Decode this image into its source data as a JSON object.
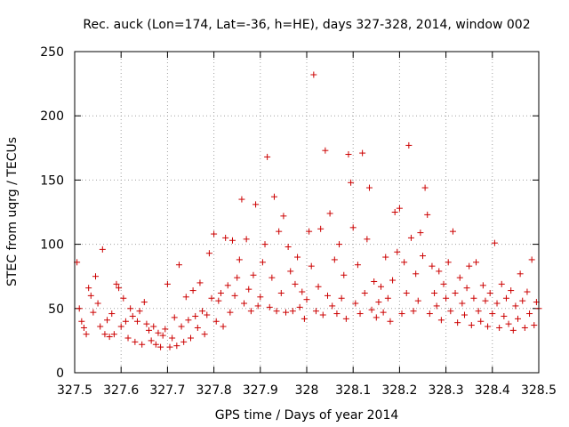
{
  "chart_data": {
    "type": "scatter",
    "title": "Rec. auck (Lon=174, Lat=-36, h=HE), days 327-328, 2014, window 002",
    "xlabel": "GPS time / Days of year 2014",
    "ylabel": "STEC from uqrg / TECUs",
    "xlim": [
      327.5,
      328.5
    ],
    "ylim": [
      0,
      250
    ],
    "x_ticks": [
      327.5,
      327.6,
      327.7,
      327.8,
      327.9,
      328,
      328.1,
      328.2,
      328.3,
      328.4,
      328.5
    ],
    "x_tick_labels": [
      "327.5",
      "327.6",
      "327.7",
      "327.8",
      "327.9",
      "328",
      "328.1",
      "328.2",
      "328.3",
      "328.4",
      "328.5"
    ],
    "y_ticks": [
      0,
      50,
      100,
      150,
      200,
      250
    ],
    "y_tick_labels": [
      "0",
      "50",
      "100",
      "150",
      "200",
      "250"
    ],
    "grid": true,
    "marker": "+",
    "marker_color": "#cc0000",
    "series": [
      {
        "name": "STEC",
        "points": [
          [
            327.505,
            86
          ],
          [
            327.51,
            50
          ],
          [
            327.515,
            40
          ],
          [
            327.52,
            35
          ],
          [
            327.525,
            30
          ],
          [
            327.53,
            66
          ],
          [
            327.535,
            60
          ],
          [
            327.54,
            47
          ],
          [
            327.545,
            75
          ],
          [
            327.55,
            54
          ],
          [
            327.555,
            36
          ],
          [
            327.56,
            96
          ],
          [
            327.565,
            30
          ],
          [
            327.57,
            41
          ],
          [
            327.575,
            28
          ],
          [
            327.58,
            46
          ],
          [
            327.585,
            30
          ],
          [
            327.59,
            69
          ],
          [
            327.595,
            66
          ],
          [
            327.6,
            36
          ],
          [
            327.605,
            58
          ],
          [
            327.61,
            40
          ],
          [
            327.615,
            27
          ],
          [
            327.62,
            50
          ],
          [
            327.625,
            44
          ],
          [
            327.63,
            24
          ],
          [
            327.635,
            40
          ],
          [
            327.64,
            48
          ],
          [
            327.645,
            22
          ],
          [
            327.65,
            55
          ],
          [
            327.655,
            38
          ],
          [
            327.66,
            33
          ],
          [
            327.665,
            25
          ],
          [
            327.67,
            36
          ],
          [
            327.675,
            22
          ],
          [
            327.68,
            31
          ],
          [
            327.685,
            20
          ],
          [
            327.69,
            29
          ],
          [
            327.695,
            34
          ],
          [
            327.7,
            69
          ],
          [
            327.705,
            20
          ],
          [
            327.71,
            27
          ],
          [
            327.715,
            43
          ],
          [
            327.72,
            21
          ],
          [
            327.725,
            84
          ],
          [
            327.73,
            36
          ],
          [
            327.735,
            24
          ],
          [
            327.74,
            59
          ],
          [
            327.745,
            41
          ],
          [
            327.75,
            27
          ],
          [
            327.755,
            64
          ],
          [
            327.76,
            44
          ],
          [
            327.765,
            35
          ],
          [
            327.77,
            70
          ],
          [
            327.775,
            48
          ],
          [
            327.78,
            30
          ],
          [
            327.785,
            45
          ],
          [
            327.79,
            93
          ],
          [
            327.795,
            58
          ],
          [
            327.8,
            108
          ],
          [
            327.805,
            40
          ],
          [
            327.81,
            56
          ],
          [
            327.815,
            62
          ],
          [
            327.82,
            36
          ],
          [
            327.825,
            105
          ],
          [
            327.83,
            68
          ],
          [
            327.835,
            47
          ],
          [
            327.84,
            103
          ],
          [
            327.845,
            60
          ],
          [
            327.85,
            74
          ],
          [
            327.855,
            88
          ],
          [
            327.86,
            135
          ],
          [
            327.865,
            54
          ],
          [
            327.87,
            104
          ],
          [
            327.875,
            65
          ],
          [
            327.88,
            48
          ],
          [
            327.885,
            76
          ],
          [
            327.89,
            131
          ],
          [
            327.895,
            52
          ],
          [
            327.9,
            59
          ],
          [
            327.905,
            86
          ],
          [
            327.91,
            100
          ],
          [
            327.915,
            168
          ],
          [
            327.92,
            51
          ],
          [
            327.925,
            74
          ],
          [
            327.93,
            137
          ],
          [
            327.935,
            48
          ],
          [
            327.94,
            110
          ],
          [
            327.945,
            62
          ],
          [
            327.95,
            122
          ],
          [
            327.955,
            47
          ],
          [
            327.96,
            98
          ],
          [
            327.965,
            79
          ],
          [
            327.97,
            48
          ],
          [
            327.975,
            69
          ],
          [
            327.98,
            90
          ],
          [
            327.985,
            51
          ],
          [
            327.99,
            63
          ],
          [
            327.995,
            42
          ],
          [
            328.0,
            57
          ],
          [
            328.005,
            110
          ],
          [
            328.01,
            83
          ],
          [
            328.015,
            232
          ],
          [
            328.02,
            48
          ],
          [
            328.025,
            67
          ],
          [
            328.03,
            112
          ],
          [
            328.035,
            45
          ],
          [
            328.04,
            173
          ],
          [
            328.045,
            60
          ],
          [
            328.05,
            124
          ],
          [
            328.055,
            52
          ],
          [
            328.06,
            88
          ],
          [
            328.065,
            46
          ],
          [
            328.07,
            100
          ],
          [
            328.075,
            58
          ],
          [
            328.08,
            76
          ],
          [
            328.085,
            42
          ],
          [
            328.09,
            170
          ],
          [
            328.095,
            148
          ],
          [
            328.1,
            113
          ],
          [
            328.105,
            54
          ],
          [
            328.11,
            84
          ],
          [
            328.115,
            46
          ],
          [
            328.12,
            171
          ],
          [
            328.125,
            62
          ],
          [
            328.13,
            104
          ],
          [
            328.135,
            144
          ],
          [
            328.14,
            49
          ],
          [
            328.145,
            71
          ],
          [
            328.15,
            43
          ],
          [
            328.155,
            55
          ],
          [
            328.16,
            67
          ],
          [
            328.165,
            47
          ],
          [
            328.17,
            90
          ],
          [
            328.175,
            58
          ],
          [
            328.18,
            40
          ],
          [
            328.185,
            72
          ],
          [
            328.19,
            125
          ],
          [
            328.195,
            94
          ],
          [
            328.2,
            128
          ],
          [
            328.205,
            46
          ],
          [
            328.21,
            86
          ],
          [
            328.215,
            62
          ],
          [
            328.22,
            177
          ],
          [
            328.225,
            105
          ],
          [
            328.23,
            48
          ],
          [
            328.235,
            77
          ],
          [
            328.24,
            56
          ],
          [
            328.245,
            109
          ],
          [
            328.25,
            91
          ],
          [
            328.255,
            144
          ],
          [
            328.26,
            123
          ],
          [
            328.265,
            46
          ],
          [
            328.27,
            83
          ],
          [
            328.275,
            62
          ],
          [
            328.28,
            52
          ],
          [
            328.285,
            79
          ],
          [
            328.29,
            41
          ],
          [
            328.295,
            69
          ],
          [
            328.3,
            58
          ],
          [
            328.305,
            86
          ],
          [
            328.31,
            48
          ],
          [
            328.315,
            110
          ],
          [
            328.32,
            62
          ],
          [
            328.325,
            39
          ],
          [
            328.33,
            74
          ],
          [
            328.335,
            54
          ],
          [
            328.34,
            45
          ],
          [
            328.345,
            66
          ],
          [
            328.35,
            83
          ],
          [
            328.355,
            37
          ],
          [
            328.36,
            58
          ],
          [
            328.365,
            86
          ],
          [
            328.37,
            48
          ],
          [
            328.375,
            40
          ],
          [
            328.38,
            68
          ],
          [
            328.385,
            56
          ],
          [
            328.39,
            36
          ],
          [
            328.395,
            62
          ],
          [
            328.4,
            46
          ],
          [
            328.405,
            101
          ],
          [
            328.41,
            54
          ],
          [
            328.415,
            35
          ],
          [
            328.42,
            69
          ],
          [
            328.425,
            44
          ],
          [
            328.43,
            58
          ],
          [
            328.435,
            38
          ],
          [
            328.44,
            64
          ],
          [
            328.445,
            33
          ],
          [
            328.45,
            52
          ],
          [
            328.455,
            42
          ],
          [
            328.46,
            77
          ],
          [
            328.465,
            56
          ],
          [
            328.47,
            35
          ],
          [
            328.475,
            63
          ],
          [
            328.48,
            46
          ],
          [
            328.485,
            88
          ],
          [
            328.49,
            37
          ],
          [
            328.495,
            55
          ],
          [
            328.5,
            50
          ]
        ]
      }
    ]
  }
}
